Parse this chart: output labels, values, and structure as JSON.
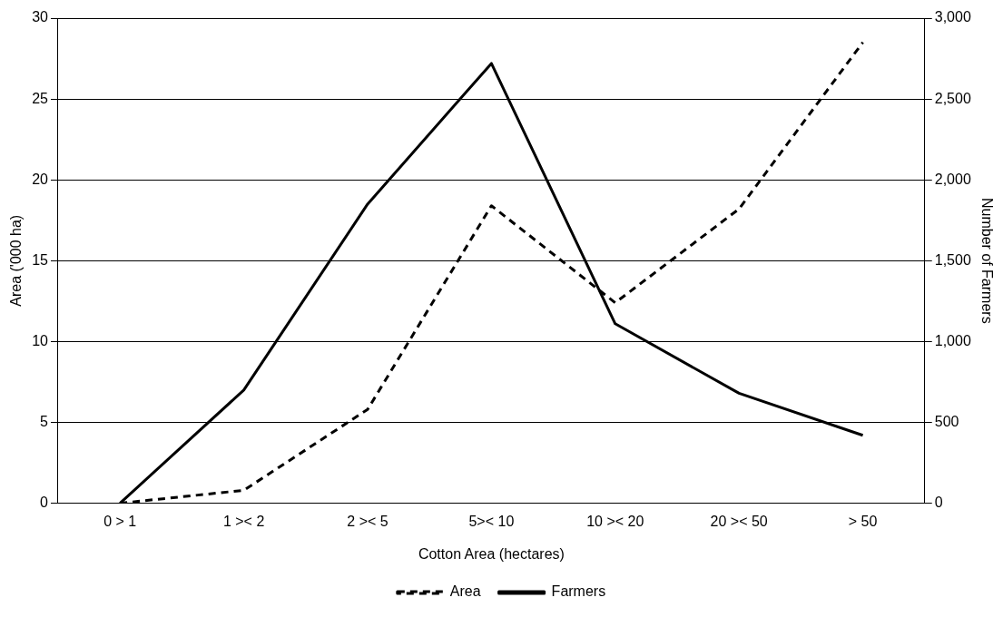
{
  "chart_data": {
    "type": "line",
    "xlabel": "Cotton Area (hectares)",
    "ylabel": "Area ('000 ha)",
    "y2label": "Number of Farmers",
    "categories": [
      "0 > 1",
      "1 >< 2",
      "2 >< 5",
      "5>< 10",
      "10 >< 20",
      "20 >< 50",
      "> 50"
    ],
    "series": [
      {
        "name": "Area",
        "color": "#000000",
        "line_style": "dashed",
        "values": [
          0,
          0.8,
          5.8,
          18.4,
          12.4,
          18.2,
          28.5
        ]
      },
      {
        "name": "Farmers",
        "color": "#000000",
        "line_style": "solid",
        "axis": "y2",
        "values": [
          0,
          700,
          1850,
          2720,
          1110,
          680,
          420
        ]
      }
    ],
    "ylim": [
      0,
      30
    ],
    "yticks": [
      0,
      5,
      10,
      15,
      20,
      25,
      30
    ],
    "y2lim": [
      0,
      3000
    ],
    "y2ticks": [
      {
        "value": 0,
        "label": "0"
      },
      {
        "value": 500,
        "label": "500"
      },
      {
        "value": 1000,
        "label": "1,000"
      },
      {
        "value": 1500,
        "label": "1,500"
      },
      {
        "value": 2000,
        "label": "2,000"
      },
      {
        "value": 2500,
        "label": "2,500"
      },
      {
        "value": 3000,
        "label": "3,000"
      }
    ],
    "grid": "y",
    "legend": "bottom",
    "marker": "none"
  }
}
